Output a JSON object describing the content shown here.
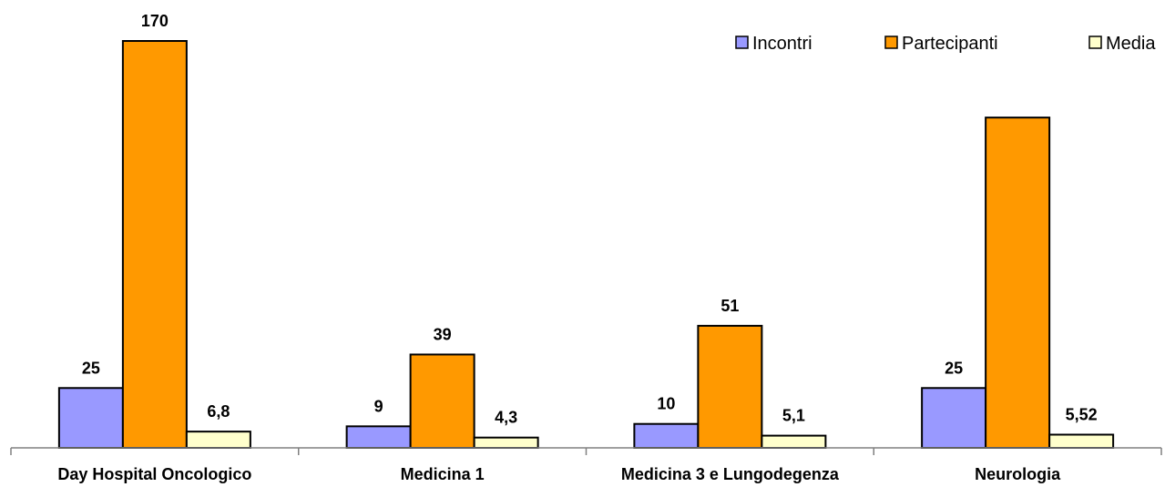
{
  "chart_data": {
    "type": "bar",
    "categories": [
      "Day Hospital Oncologico",
      "Medicina 1",
      "Medicina 3 e Lungodegenza",
      "Neurologia"
    ],
    "series": [
      {
        "name": "Incontri",
        "color": "#9999ff",
        "values": [
          25,
          9,
          10,
          25
        ],
        "labels": [
          "25",
          "9",
          "10",
          "25"
        ]
      },
      {
        "name": "Partecipanti",
        "color": "#ff9900",
        "values": [
          170,
          39,
          51,
          138
        ],
        "labels": [
          "170",
          "39",
          "51",
          ""
        ]
      },
      {
        "name": "Media",
        "color": "#ffffcc",
        "values": [
          6.8,
          4.3,
          5.1,
          5.52
        ],
        "labels": [
          "6,8",
          "4,3",
          "5,1",
          "5,52"
        ]
      }
    ],
    "ylim": [
      0,
      170
    ],
    "grid": false,
    "legend_position": "top-right"
  }
}
